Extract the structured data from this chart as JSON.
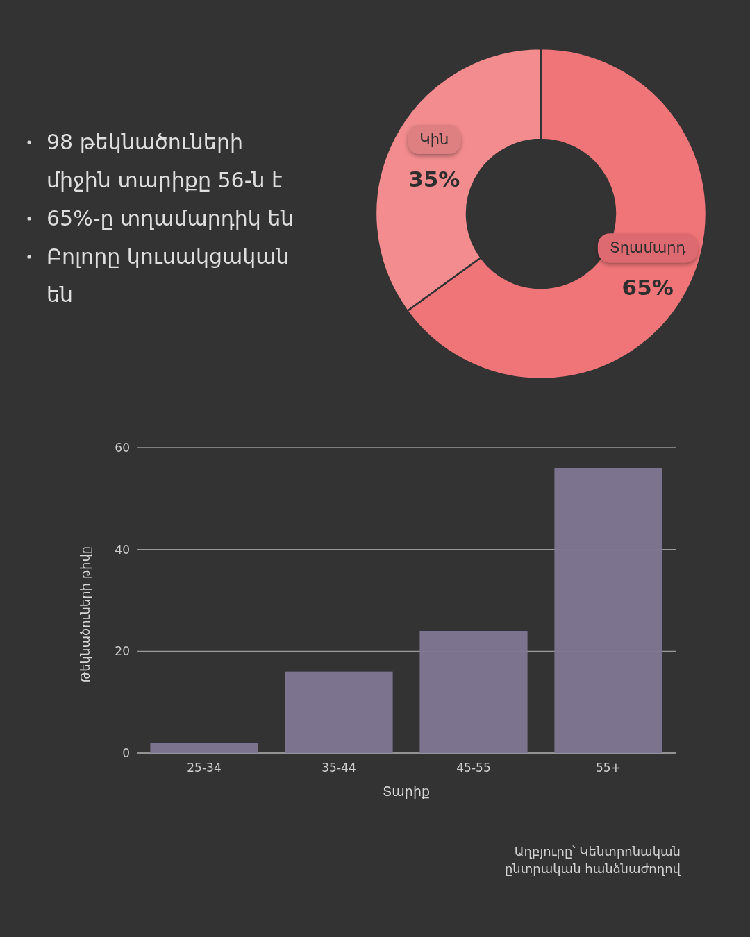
{
  "chart_data": [
    {
      "type": "other",
      "annotations": [
        "98 թեկնածուների միջին տարիքը 56-ն է",
        "65%-ը տղամարդիկ են",
        "Բոլորը կուսակցական են"
      ]
    },
    {
      "type": "donut",
      "categories": [
        "Տղամարդ",
        "Կին"
      ],
      "values": [
        65,
        35
      ],
      "colors": [
        "#f07579",
        "#f38c8e"
      ],
      "value_labels": [
        "65%",
        "35%"
      ]
    },
    {
      "type": "bar",
      "categories": [
        "25-34",
        "35-44",
        "45-55",
        "55+"
      ],
      "values": [
        2,
        16,
        24,
        56
      ],
      "color": "#7f7793",
      "ylim": [
        0,
        60
      ],
      "yticks": [
        0,
        20,
        40,
        60
      ],
      "grid": "y",
      "xlabel": "Տարիք",
      "ylabel": "Թեկնածուների թիվը",
      "annotations": [
        "Աղբյուրը՝ Կենտրոնական ընտրական հանձնաժողով"
      ]
    }
  ]
}
